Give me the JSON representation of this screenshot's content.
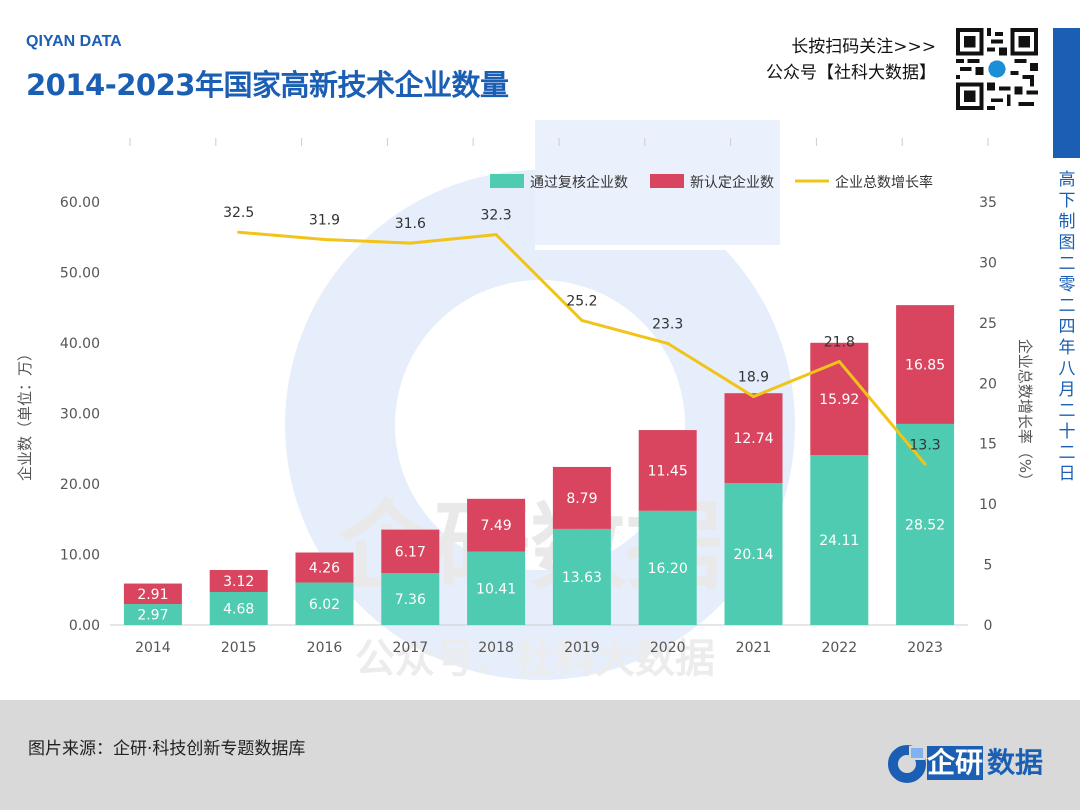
{
  "header": {
    "brand": "QIYAN DATA",
    "title": "2014-2023年国家高新技术企业数量",
    "qr_line1": "长按扫码关注>>>",
    "qr_line2": "公众号【社科大数据】"
  },
  "side": {
    "text": "高下制图 二零二四年八月二十二日"
  },
  "watermark": {
    "big": "企研数据",
    "small": "公众号：社科大数据"
  },
  "footer": {
    "source": "图片来源：企研·科技创新专题数据库",
    "logo_main": "企研",
    "logo_tail": "数据"
  },
  "colors": {
    "brand_blue": "#1b5fb5",
    "teal": "#4ecbb0",
    "red": "#d9455f",
    "yellow": "#f2c318",
    "axis_text": "#555555"
  },
  "chart_data": {
    "type": "bar",
    "stacked": true,
    "categories": [
      "2014",
      "2015",
      "2016",
      "2017",
      "2018",
      "2019",
      "2020",
      "2021",
      "2022",
      "2023"
    ],
    "series": [
      {
        "name": "通过复核企业数",
        "type": "bar",
        "axis": "left",
        "values": [
          2.97,
          4.68,
          6.02,
          7.36,
          10.41,
          13.63,
          16.2,
          20.14,
          24.11,
          28.52
        ],
        "labels": [
          "2.97",
          "4.68",
          "6.02",
          "7.36",
          "10.41",
          "13.63",
          "16.20",
          "20.14",
          "24.11",
          "28.52"
        ]
      },
      {
        "name": "新认定企业数",
        "type": "bar",
        "axis": "left",
        "values": [
          2.91,
          3.12,
          4.26,
          6.17,
          7.49,
          8.79,
          11.45,
          12.74,
          15.92,
          16.85
        ],
        "labels": [
          "2.91",
          "3.12",
          "4.26",
          "6.17",
          "7.49",
          "8.79",
          "11.45",
          "12.74",
          "15.92",
          "16.85"
        ]
      },
      {
        "name": "企业总数增长率",
        "type": "line",
        "axis": "right",
        "values": [
          null,
          32.5,
          31.9,
          31.6,
          32.3,
          25.2,
          23.3,
          18.9,
          21.8,
          13.3
        ],
        "labels": [
          "",
          "32.5",
          "31.9",
          "31.6",
          "32.3",
          "25.2",
          "23.3",
          "18.9",
          "21.8",
          "13.3"
        ]
      }
    ],
    "ylabel": "企业数（单位：万）",
    "y2label": "企业总数增长率（%）",
    "ylim": [
      0,
      60
    ],
    "y2lim": [
      0,
      35
    ],
    "yticks": [
      "0.00",
      "10.00",
      "20.00",
      "30.00",
      "40.00",
      "50.00",
      "60.00"
    ],
    "y2ticks": [
      "0",
      "5",
      "10",
      "15",
      "20",
      "25",
      "30",
      "35"
    ],
    "legend_position": "top-right",
    "grid": false
  }
}
